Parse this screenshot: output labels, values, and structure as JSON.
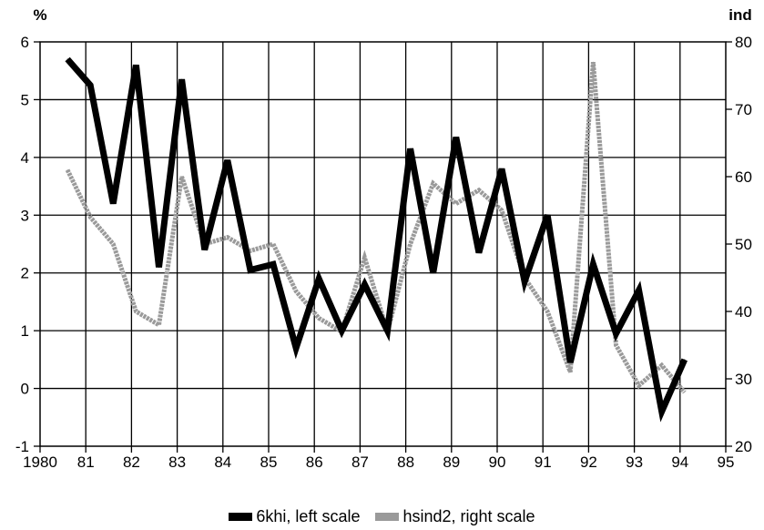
{
  "chart_data": {
    "type": "line",
    "left_axis": {
      "unit_label": "%",
      "ylim": [
        -1,
        6
      ],
      "ticks": [
        "-1",
        "0",
        "1",
        "2",
        "3",
        "4",
        "5",
        "6"
      ]
    },
    "right_axis": {
      "unit_label": "ind",
      "ylim": [
        20,
        80
      ],
      "ticks": [
        "20",
        "30",
        "40",
        "50",
        "60",
        "70",
        "80"
      ]
    },
    "x_axis": {
      "xlim": [
        1980,
        1995
      ],
      "ticks": [
        "1980",
        "81",
        "82",
        "83",
        "84",
        "85",
        "86",
        "87",
        "88",
        "89",
        "90",
        "91",
        "92",
        "93",
        "94",
        "95"
      ]
    },
    "grid": true,
    "legend_position": "bottom-center",
    "series": [
      {
        "name": "6khi, left scale",
        "axis": "left",
        "color": "#000000",
        "x": [
          1980.6,
          1981.1,
          1981.6,
          1982.1,
          1982.6,
          1983.1,
          1983.6,
          1984.1,
          1984.6,
          1985.1,
          1985.6,
          1986.1,
          1986.6,
          1987.1,
          1987.6,
          1988.1,
          1988.6,
          1989.1,
          1989.6,
          1990.1,
          1990.6,
          1991.1,
          1991.6,
          1992.1,
          1992.6,
          1993.1,
          1993.6,
          1994.1
        ],
        "values": [
          5.7,
          5.25,
          3.2,
          5.6,
          2.1,
          5.35,
          2.4,
          3.95,
          2.05,
          2.15,
          0.7,
          1.9,
          1.0,
          1.8,
          1.0,
          4.15,
          2.0,
          4.35,
          2.35,
          3.8,
          1.85,
          3.0,
          0.45,
          2.15,
          0.95,
          1.7,
          -0.4,
          0.5
        ]
      },
      {
        "name": "hsind2, right scale",
        "axis": "right",
        "color": "#9a9a9a",
        "x": [
          1980.6,
          1981.1,
          1981.6,
          1982.1,
          1982.6,
          1983.1,
          1983.6,
          1984.1,
          1984.6,
          1985.1,
          1985.6,
          1986.1,
          1986.6,
          1987.1,
          1987.6,
          1988.1,
          1988.6,
          1989.1,
          1989.6,
          1990.1,
          1990.6,
          1991.1,
          1991.6,
          1992.1,
          1992.6,
          1993.1,
          1993.6,
          1994.1
        ],
        "values": [
          61,
          54,
          50,
          40,
          38,
          60,
          50,
          51,
          49,
          50,
          43,
          39,
          37,
          48,
          37,
          50,
          59,
          56,
          58,
          55,
          45,
          40,
          31,
          77,
          35,
          29,
          32,
          28
        ]
      }
    ]
  }
}
